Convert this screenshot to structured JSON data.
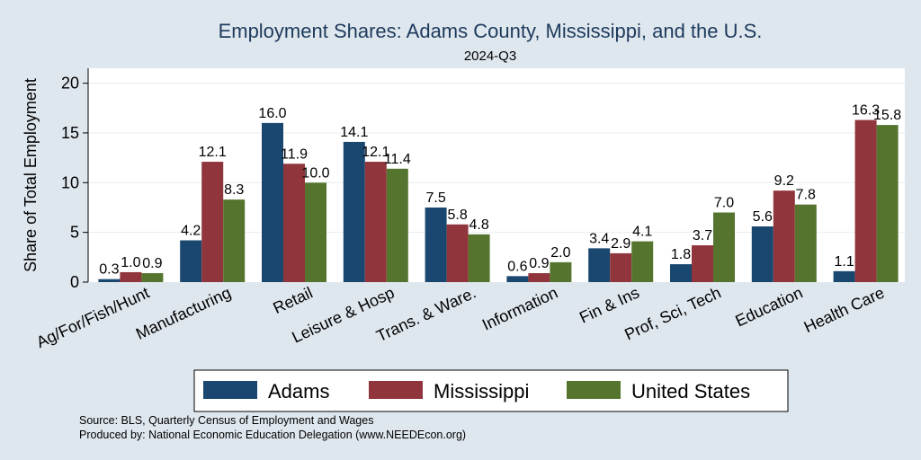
{
  "chart_data": {
    "type": "bar",
    "title": "Employment Shares: Adams County, Mississippi, and the U.S.",
    "subtitle": "2024-Q3",
    "xlabel": "",
    "ylabel": "Share of Total Employment",
    "ylim": [
      0,
      21.5
    ],
    "yticks": [
      0,
      5,
      10,
      15,
      20
    ],
    "grid": true,
    "legend_position": "bottom",
    "categories": [
      "Ag/For/Fish/Hunt",
      "Manufacturing",
      "Retail",
      "Leisure & Hosp",
      "Trans. & Ware.",
      "Information",
      "Fin & Ins",
      "Prof, Sci, Tech",
      "Education",
      "Health Care"
    ],
    "series": [
      {
        "name": "Adams",
        "color": "#1a476f",
        "values": [
          0.3,
          4.2,
          16.0,
          14.1,
          7.5,
          0.6,
          3.4,
          1.8,
          5.6,
          1.1
        ]
      },
      {
        "name": "Mississippi",
        "color": "#90353b",
        "values": [
          1.0,
          12.1,
          11.9,
          12.1,
          5.8,
          0.9,
          2.9,
          3.7,
          9.2,
          16.3
        ]
      },
      {
        "name": "United States",
        "color": "#55752f",
        "values": [
          0.9,
          8.3,
          10.0,
          11.4,
          4.8,
          2.0,
          4.1,
          7.0,
          7.8,
          15.8
        ]
      }
    ]
  },
  "notes": {
    "source": "Source: BLS, Quarterly Census of Employment and Wages",
    "produced": "Produced by: National Economic Education Delegation (www.NEEDEcon.org)"
  }
}
